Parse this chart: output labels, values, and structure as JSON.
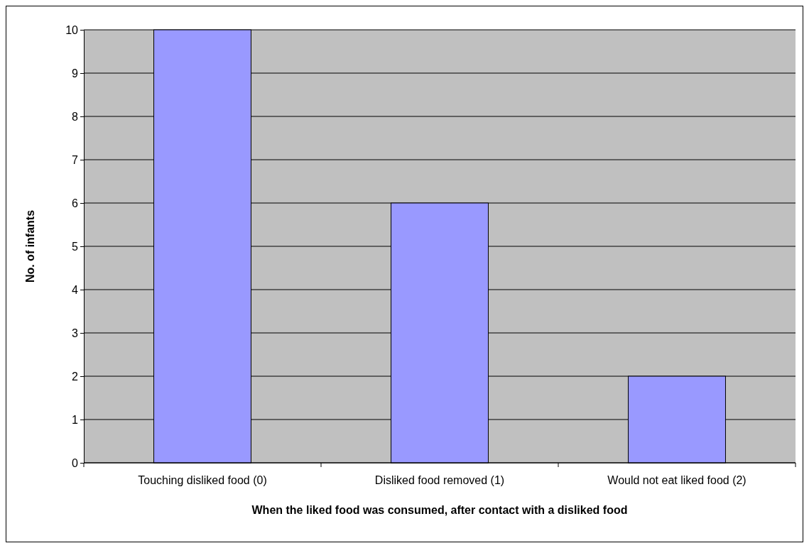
{
  "chart_data": {
    "type": "bar",
    "xlabel": "When the liked food was consumed, after contact with a disliked food",
    "ylabel": "No. of infants",
    "categories": [
      "Touching disliked food (0)",
      "Disliked food removed (1)",
      "Would not eat liked food (2)"
    ],
    "values": [
      10,
      6,
      2
    ],
    "color": "#9999ff",
    "ylim": [
      0,
      10
    ],
    "yticks": [
      0,
      1,
      2,
      3,
      4,
      5,
      6,
      7,
      8,
      9,
      10
    ],
    "grid": "y"
  }
}
